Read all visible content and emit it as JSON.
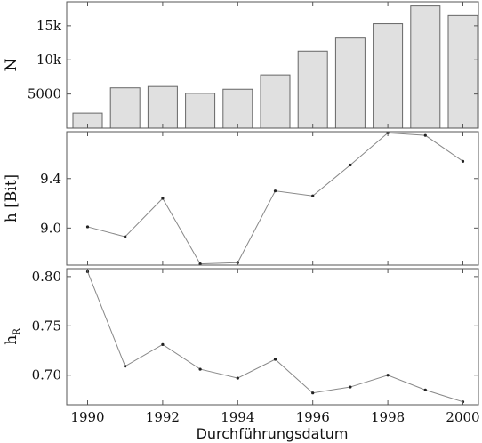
{
  "chart_data": [
    {
      "type": "bar",
      "ylabel": "N",
      "x": [
        1990,
        1991,
        1992,
        1993,
        1994,
        1995,
        1996,
        1997,
        1998,
        1999,
        2000
      ],
      "values": [
        2200,
        5900,
        6100,
        5100,
        5700,
        7800,
        11300,
        13200,
        15300,
        17900,
        16500
      ],
      "ylim": [
        0,
        18500
      ],
      "yticks": [
        5000,
        10000,
        15000
      ],
      "yticklabels": [
        "5000",
        "10k",
        "15k"
      ]
    },
    {
      "type": "line",
      "ylabel": "h [Bit]",
      "x": [
        1990,
        1991,
        1992,
        1993,
        1994,
        1995,
        1996,
        1997,
        1998,
        1999,
        2000
      ],
      "values": [
        9.01,
        8.93,
        9.24,
        8.71,
        8.72,
        9.3,
        9.26,
        9.51,
        9.77,
        9.75,
        9.54
      ],
      "ylim": [
        8.7,
        9.78
      ],
      "yticks": [
        9.0,
        9.4
      ],
      "yticklabels": [
        "9.0",
        "9.4"
      ]
    },
    {
      "type": "line",
      "ylabel": "hR",
      "ylabel_main": "h",
      "ylabel_sub": "R",
      "x": [
        1990,
        1991,
        1992,
        1993,
        1994,
        1995,
        1996,
        1997,
        1998,
        1999,
        2000
      ],
      "values": [
        0.805,
        0.709,
        0.731,
        0.706,
        0.697,
        0.716,
        0.682,
        0.688,
        0.7,
        0.685,
        0.673
      ],
      "ylim": [
        0.67,
        0.808
      ],
      "yticks": [
        0.7,
        0.75,
        0.8
      ],
      "yticklabels": [
        "0.70",
        "0.75",
        "0.80"
      ]
    }
  ],
  "x_axis": {
    "label": "Durchführungsdatum",
    "ticks": [
      1990,
      1992,
      1994,
      1996,
      1998,
      2000
    ],
    "ticklabels": [
      "1990",
      "1992",
      "1994",
      "1996",
      "1998",
      "2000"
    ]
  }
}
